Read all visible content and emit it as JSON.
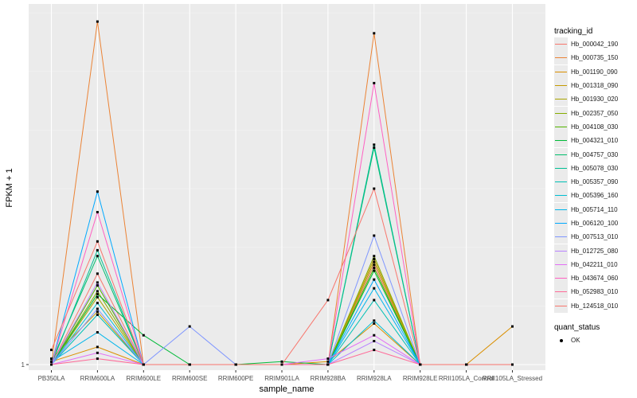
{
  "chart_data": {
    "type": "line",
    "xlabel": "sample_name",
    "ylabel": "FPKM + 1",
    "y_tick_labels": [
      "1"
    ],
    "y_ticks": [
      1
    ],
    "ylim": [
      0.81,
      13.3
    ],
    "categories": [
      "PB350LA",
      "RRIM600LA",
      "RRIM600LE",
      "RRIM600SE",
      "RRIM600PE",
      "RRIM901LA",
      "RRIM928BA",
      "RRIM928LA",
      "RRIM928LE",
      "RRII105LA_Control",
      "RRII105LA_Stressed"
    ],
    "legend_title": "tracking_id",
    "legend2_title": "quant_status",
    "legend2_items": [
      "OK"
    ],
    "series": [
      {
        "name": "Hb_000042_190",
        "color": "#F8766D",
        "values": [
          1.0,
          4.1,
          1.0,
          1.0,
          1.0,
          1.0,
          1.0,
          4.4,
          1.0,
          1.0,
          1.0
        ]
      },
      {
        "name": "Hb_000735_150",
        "color": "#EB8335",
        "values": [
          1.0,
          12.7,
          1.0,
          1.0,
          1.0,
          1.0,
          1.0,
          12.3,
          1.0,
          1.0,
          1.0
        ]
      },
      {
        "name": "Hb_001190_090",
        "color": "#DA8F00",
        "values": [
          1.1,
          1.6,
          1.0,
          1.0,
          1.0,
          1.0,
          1.1,
          2.4,
          1.0,
          1.0,
          2.3
        ]
      },
      {
        "name": "Hb_001318_090",
        "color": "#C49A00",
        "values": [
          1.2,
          2.8,
          1.0,
          1.0,
          1.0,
          1.0,
          1.0,
          4.6,
          1.0,
          1.0,
          1.0
        ]
      },
      {
        "name": "Hb_001930_020",
        "color": "#A9A400",
        "values": [
          1.0,
          3.3,
          1.0,
          1.0,
          1.0,
          1.0,
          1.0,
          4.5,
          1.0,
          1.0,
          1.0
        ]
      },
      {
        "name": "Hb_002357_050",
        "color": "#86AC00",
        "values": [
          1.0,
          3.5,
          1.0,
          1.0,
          1.0,
          1.0,
          1.0,
          4.7,
          1.0,
          1.0,
          1.0
        ]
      },
      {
        "name": "Hb_004108_030",
        "color": "#53B400",
        "values": [
          1.0,
          3.7,
          1.0,
          1.0,
          1.0,
          1.0,
          1.0,
          4.3,
          1.0,
          1.0,
          1.0
        ]
      },
      {
        "name": "Hb_004321_010",
        "color": "#00BA38",
        "values": [
          1.0,
          3.4,
          2.0,
          1.0,
          1.0,
          1.1,
          1.0,
          4.2,
          1.0,
          1.0,
          1.0
        ]
      },
      {
        "name": "Hb_004757_030",
        "color": "#00BE6D",
        "values": [
          1.1,
          4.7,
          1.0,
          1.0,
          1.0,
          1.0,
          1.0,
          8.4,
          1.0,
          1.0,
          1.0
        ]
      },
      {
        "name": "Hb_005078_030",
        "color": "#00C094",
        "values": [
          1.0,
          4.9,
          1.0,
          1.0,
          1.0,
          1.0,
          1.0,
          8.5,
          1.0,
          1.0,
          1.0
        ]
      },
      {
        "name": "Hb_005357_090",
        "color": "#00C0B5",
        "values": [
          1.0,
          2.7,
          1.0,
          1.0,
          1.0,
          1.0,
          1.0,
          3.2,
          1.0,
          1.0,
          1.0
        ]
      },
      {
        "name": "Hb_005396_160",
        "color": "#00BDD2",
        "values": [
          1.0,
          3.1,
          1.0,
          1.0,
          1.0,
          1.0,
          1.0,
          2.5,
          1.0,
          1.0,
          1.0
        ]
      },
      {
        "name": "Hb_005714_110",
        "color": "#00B6EB",
        "values": [
          1.1,
          2.1,
          1.0,
          1.0,
          1.0,
          1.0,
          1.0,
          3.6,
          1.0,
          1.0,
          1.0
        ]
      },
      {
        "name": "Hb_006120_100",
        "color": "#00A9FF",
        "values": [
          1.0,
          6.9,
          1.0,
          1.0,
          1.0,
          1.0,
          1.0,
          3.9,
          1.0,
          1.0,
          1.0
        ]
      },
      {
        "name": "Hb_007513_010",
        "color": "#7F96FF",
        "values": [
          1.0,
          2.9,
          1.0,
          2.3,
          1.0,
          1.0,
          1.0,
          5.4,
          1.0,
          1.0,
          1.0
        ]
      },
      {
        "name": "Hb_012725_080",
        "color": "#B983FF",
        "values": [
          1.0,
          3.8,
          1.0,
          1.0,
          1.0,
          1.0,
          1.0,
          1.8,
          1.0,
          1.0,
          1.0
        ]
      },
      {
        "name": "Hb_042211_010",
        "color": "#E36EF6",
        "values": [
          1.0,
          1.4,
          1.0,
          1.0,
          1.0,
          1.0,
          1.2,
          2.0,
          1.0,
          1.0,
          1.0
        ]
      },
      {
        "name": "Hb_043674_060",
        "color": "#FF61C3",
        "values": [
          1.0,
          6.2,
          1.0,
          1.0,
          1.0,
          1.0,
          1.0,
          10.6,
          1.0,
          1.0,
          1.0
        ]
      },
      {
        "name": "Hb_052983_010",
        "color": "#FF6A98",
        "values": [
          1.0,
          1.2,
          1.0,
          1.0,
          1.0,
          1.0,
          1.0,
          1.5,
          1.0,
          1.0,
          1.0
        ]
      },
      {
        "name": "Hb_124518_010",
        "color": "#F8766D",
        "values": [
          1.5,
          5.2,
          1.0,
          1.0,
          1.0,
          1.0,
          3.2,
          7.0,
          1.0,
          1.0,
          1.0
        ]
      }
    ]
  }
}
